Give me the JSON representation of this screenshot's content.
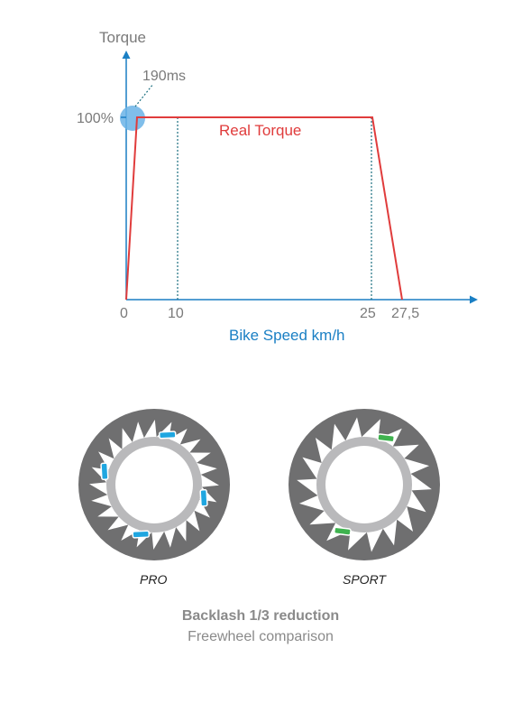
{
  "chart_data": {
    "type": "line",
    "ylabel": "Torque",
    "xlabel": "Bike Speed km/h",
    "y_tick_label": "100%",
    "x_tick_labels": [
      "0",
      "10",
      "25",
      "27,5"
    ],
    "annotation": "190ms",
    "series": [
      {
        "name": "Real Torque",
        "x": [
          0,
          1,
          25,
          27.5
        ],
        "y": [
          0,
          100,
          100,
          0
        ]
      }
    ],
    "reference_lines_x": [
      10,
      25
    ],
    "colors": {
      "axis": "#1a7fc4",
      "series": "#e03c3c",
      "highlight": "#6ab3e6",
      "text": "#7a7a7a",
      "reference": "#1a6f80"
    }
  },
  "freewheels": [
    {
      "label": "PRO",
      "pawl_color": "#1fa6e0"
    },
    {
      "label": "SPORT",
      "pawl_color": "#3fb34f"
    }
  ],
  "caption": {
    "title": "Backlash 1/3 reduction",
    "subtitle": "Freewheel comparison"
  }
}
